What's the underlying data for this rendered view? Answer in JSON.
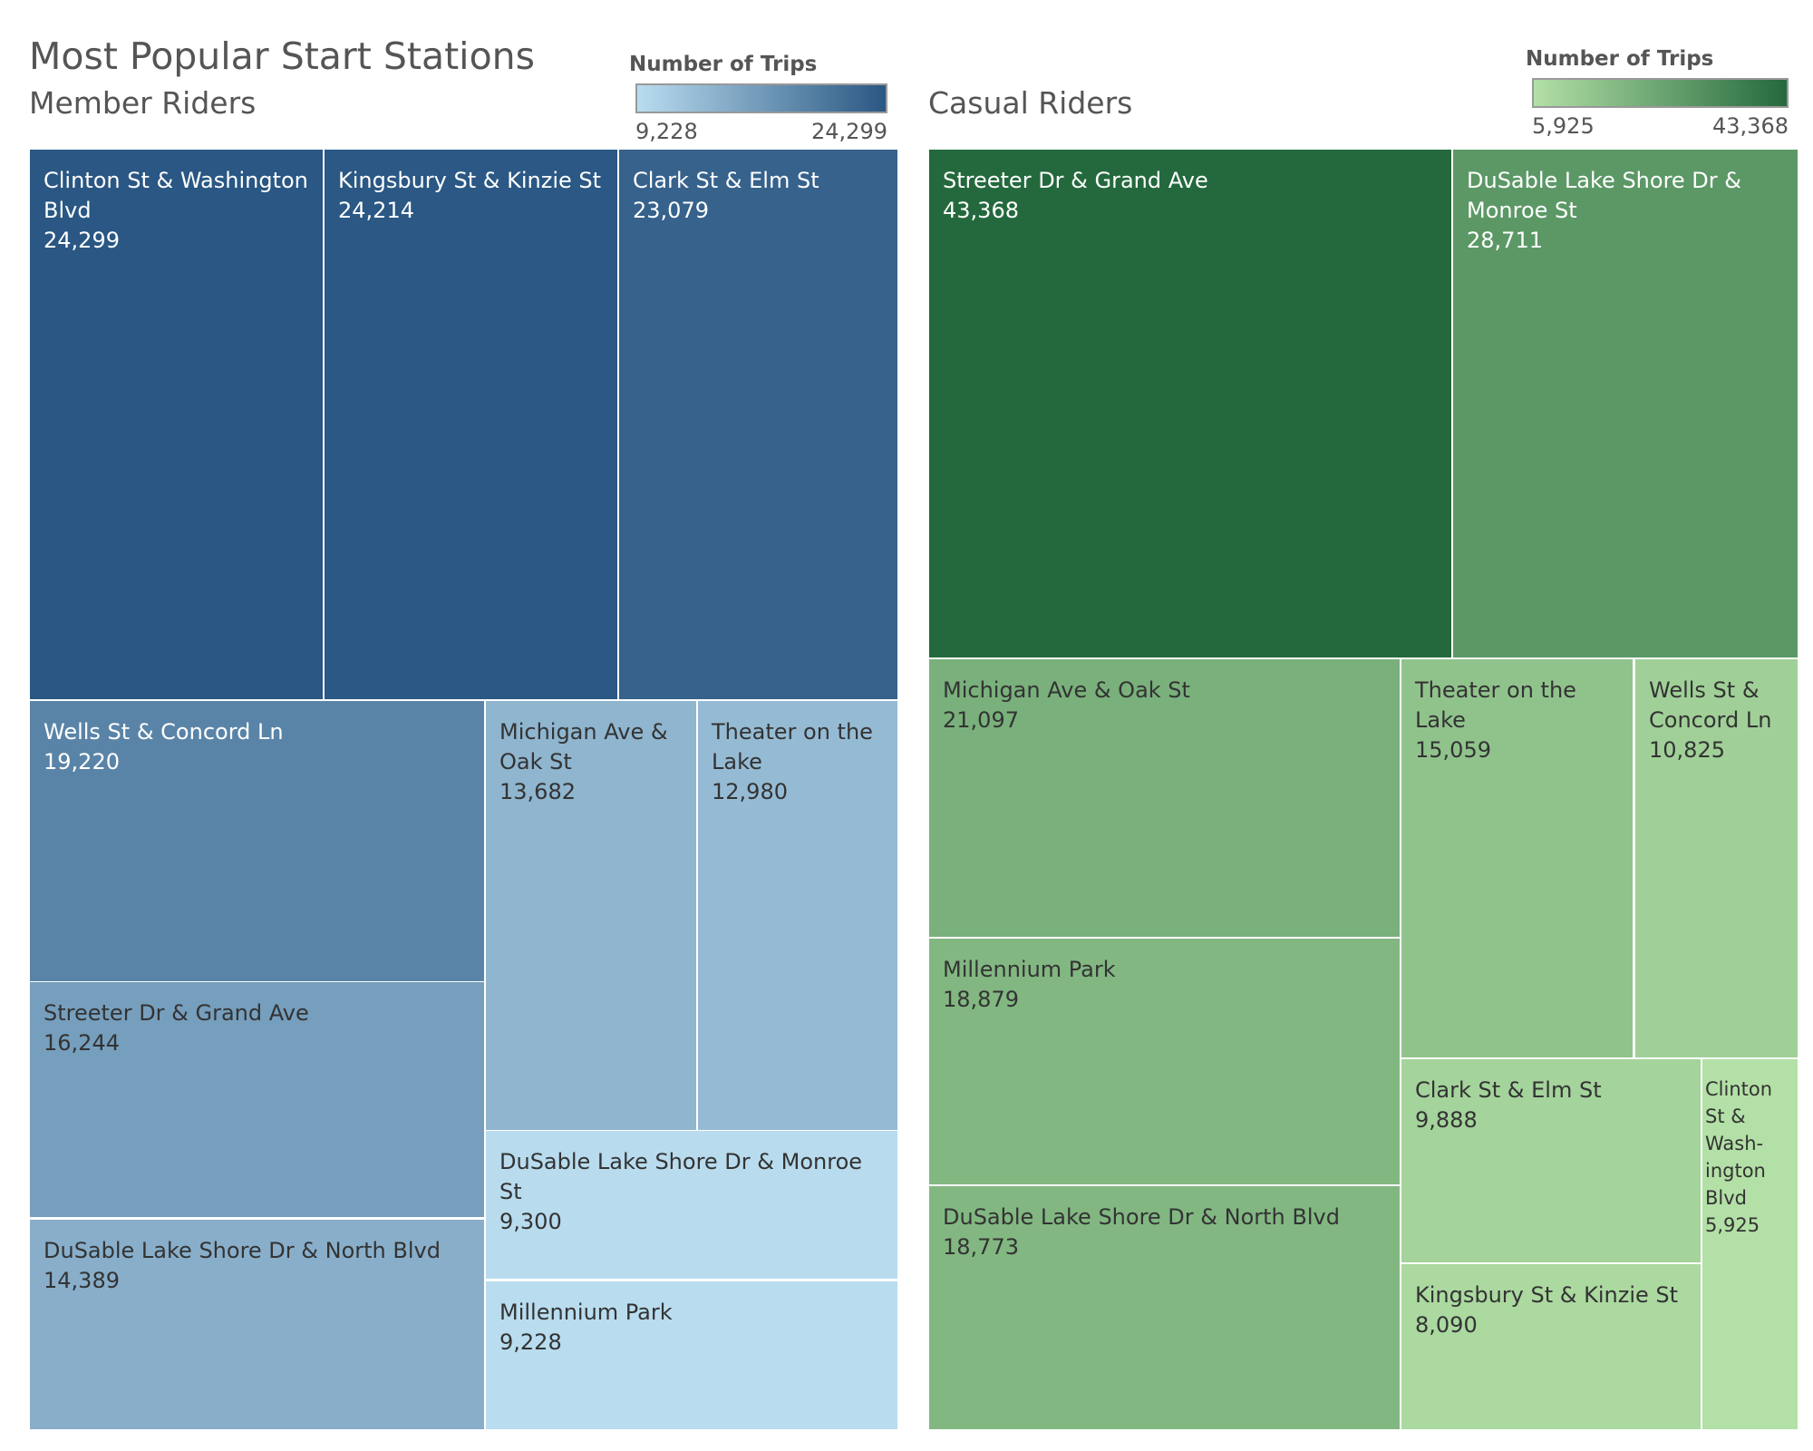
{
  "page": {
    "title": "Most Popular Start Stations"
  },
  "legend_title": "Number of Trips",
  "chart_data": [
    {
      "type": "treemap",
      "subtitle": "Member Riders",
      "value_label": "Number of Trips",
      "color_range": {
        "min": 9228,
        "max": 24299,
        "min_label": "9,228",
        "max_label": "24,299",
        "min_color": "#b9dcef",
        "max_color": "#2a5783"
      },
      "items": [
        {
          "name": "Clinton St & Washington Blvd",
          "value": 24299,
          "value_label": "24,299"
        },
        {
          "name": "Kingsbury St & Kinzie St",
          "value": 24214,
          "value_label": "24,214"
        },
        {
          "name": "Clark St & Elm St",
          "value": 23079,
          "value_label": "23,079"
        },
        {
          "name": "Wells St & Concord Ln",
          "value": 19220,
          "value_label": "19,220"
        },
        {
          "name": "Streeter Dr & Grand Ave",
          "value": 16244,
          "value_label": "16,244"
        },
        {
          "name": "DuSable Lake Shore Dr & North Blvd",
          "value": 14389,
          "value_label": "14,389"
        },
        {
          "name": "Michigan Ave & Oak St",
          "value": 13682,
          "value_label": "13,682"
        },
        {
          "name": "Theater on the Lake",
          "value": 12980,
          "value_label": "12,980"
        },
        {
          "name": "DuSable Lake Shore Dr & Monroe St",
          "value": 9300,
          "value_label": "9,300"
        },
        {
          "name": "Millennium Park",
          "value": 9228,
          "value_label": "9,228"
        }
      ]
    },
    {
      "type": "treemap",
      "subtitle": "Casual Riders",
      "value_label": "Number of Trips",
      "color_range": {
        "min": 5925,
        "max": 43368,
        "min_label": "5,925",
        "max_label": "43,368",
        "min_color": "#b3e0a6",
        "max_color": "#24693d"
      },
      "items": [
        {
          "name": "Streeter Dr & Grand Ave",
          "value": 43368,
          "value_label": "43,368"
        },
        {
          "name": "DuSable Lake Shore Dr & Monroe St",
          "value": 28711,
          "value_label": "28,711"
        },
        {
          "name": "Michigan Ave & Oak St",
          "value": 21097,
          "value_label": "21,097"
        },
        {
          "name": "Millennium Park",
          "value": 18879,
          "value_label": "18,879"
        },
        {
          "name": "DuSable Lake Shore Dr & North Blvd",
          "value": 18773,
          "value_label": "18,773"
        },
        {
          "name": "Theater on the Lake",
          "value": 15059,
          "value_label": "15,059"
        },
        {
          "name": "Wells St & Concord Ln",
          "value": 10825,
          "value_label": "10,825"
        },
        {
          "name": "Clark St & Elm St",
          "value": 9888,
          "value_label": "9,888"
        },
        {
          "name": "Kingsbury St & Kinzie St",
          "value": 8090,
          "value_label": "8,090"
        },
        {
          "name": "Clinton St & Washington Blvd",
          "value": 5925,
          "value_label": "5,925"
        }
      ]
    }
  ]
}
